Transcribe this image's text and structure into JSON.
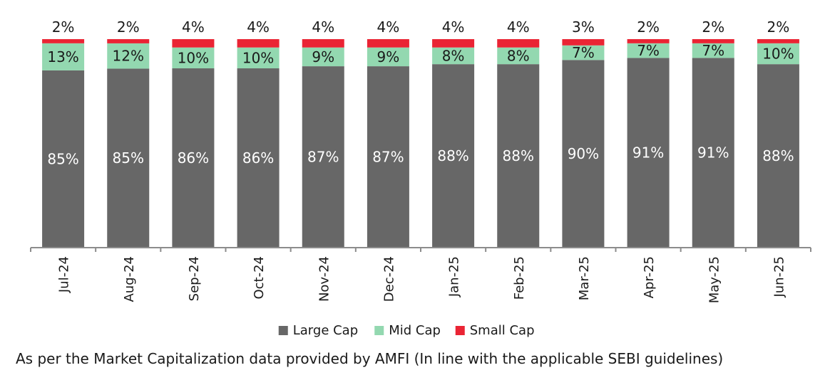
{
  "chart_data": {
    "type": "bar",
    "stacked": true,
    "percent_stacked": true,
    "title": "",
    "xlabel": "",
    "ylabel": "",
    "ylim": [
      0,
      100
    ],
    "grid": false,
    "legend_position": "bottom",
    "categories": [
      "Jul-24",
      "Aug-24",
      "Sep-24",
      "Oct-24",
      "Nov-24",
      "Dec-24",
      "Jan-25",
      "Feb-25",
      "Mar-25",
      "Apr-25",
      "May-25",
      "Jun-25"
    ],
    "series": [
      {
        "name": "Large Cap",
        "color": "#676767",
        "values": [
          85,
          85,
          86,
          86,
          87,
          87,
          88,
          88,
          90,
          91,
          91,
          88
        ],
        "labels": [
          "85%",
          "85%",
          "86%",
          "86%",
          "87%",
          "87%",
          "88%",
          "88%",
          "90%",
          "91%",
          "91%",
          "88%"
        ]
      },
      {
        "name": "Mid Cap",
        "color": "#93d8b0",
        "values": [
          13,
          12,
          10,
          10,
          9,
          9,
          8,
          8,
          7,
          7,
          7,
          10
        ],
        "labels": [
          "13%",
          "12%",
          "10%",
          "10%",
          "9%",
          "9%",
          "8%",
          "8%",
          "7%",
          "7%",
          "7%",
          "10%"
        ]
      },
      {
        "name": "Small Cap",
        "color": "#ea2434",
        "values": [
          2,
          2,
          4,
          4,
          4,
          4,
          4,
          4,
          3,
          2,
          2,
          2
        ],
        "labels": [
          "2%",
          "2%",
          "4%",
          "4%",
          "4%",
          "4%",
          "4%",
          "4%",
          "3%",
          "2%",
          "2%",
          "2%"
        ]
      }
    ]
  },
  "footnote": "As per the Market Capitalization data provided by AMFI (In line with the applicable SEBI guidelines)"
}
